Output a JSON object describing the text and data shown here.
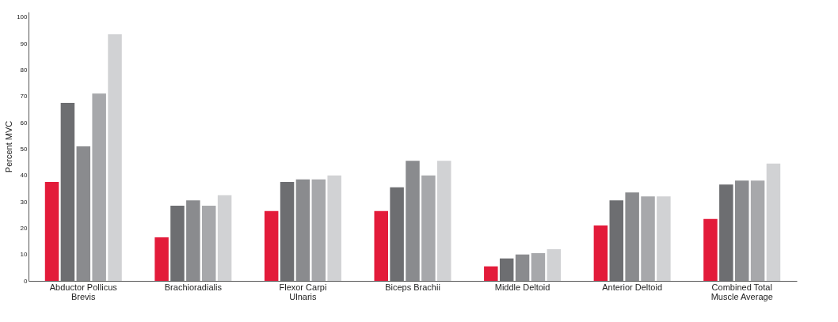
{
  "chart_data": {
    "type": "bar",
    "ylabel": "Percent MVC",
    "categories": [
      "Abductor Pollicus\nBrevis",
      "Brachioradialis",
      "Flexor Carpi\nUlnaris",
      "Biceps Brachii",
      "Middle Deltoid",
      "Anterior Deltoid",
      "Combined Total\nMuscle Average"
    ],
    "series": [
      {
        "color": "#e31b3a",
        "values": [
          37.5,
          16.5,
          26.5,
          26.5,
          5.5,
          21,
          23.5
        ]
      },
      {
        "color": "#6d6e71",
        "values": [
          67.5,
          28.5,
          37.5,
          35.5,
          8.5,
          30.5,
          36.5
        ]
      },
      {
        "color": "#8a8b8e",
        "values": [
          51,
          30.5,
          38.5,
          45.5,
          10,
          33.5,
          38
        ]
      },
      {
        "color": "#a7a8ab",
        "values": [
          71,
          28.5,
          38.5,
          40,
          10.5,
          32,
          38
        ]
      },
      {
        "color": "#d1d2d4",
        "values": [
          93.5,
          32.5,
          40,
          45.5,
          12,
          32,
          44.5
        ]
      }
    ],
    "ylim": [
      0,
      102
    ],
    "yticks": [
      0,
      10,
      20,
      30,
      40,
      50,
      60,
      70,
      80,
      90,
      100
    ],
    "grid": false
  }
}
